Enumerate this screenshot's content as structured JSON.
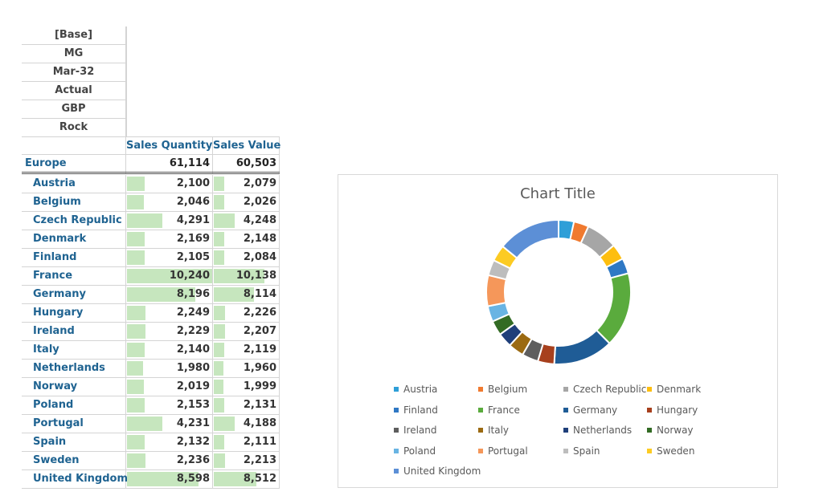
{
  "filters": [
    "[Base]",
    "MG",
    "Mar-32",
    "Actual",
    "GBP",
    "Rock"
  ],
  "table": {
    "columns": [
      "Sales Quantity",
      "Sales Value"
    ],
    "total": {
      "label": "Europe",
      "quantity": "61,114",
      "value": "60,503"
    },
    "rows": [
      {
        "label": "Austria",
        "quantity": "2,100",
        "value": "2,079"
      },
      {
        "label": "Belgium",
        "quantity": "2,046",
        "value": "2,026"
      },
      {
        "label": "Czech Republic",
        "quantity": "4,291",
        "value": "4,248"
      },
      {
        "label": "Denmark",
        "quantity": "2,169",
        "value": "2,148"
      },
      {
        "label": "Finland",
        "quantity": "2,105",
        "value": "2,084"
      },
      {
        "label": "France",
        "quantity": "10,240",
        "value": "10,138"
      },
      {
        "label": "Germany",
        "quantity": "8,196",
        "value": "8,114"
      },
      {
        "label": "Hungary",
        "quantity": "2,249",
        "value": "2,226"
      },
      {
        "label": "Ireland",
        "quantity": "2,229",
        "value": "2,207"
      },
      {
        "label": "Italy",
        "quantity": "2,140",
        "value": "2,119"
      },
      {
        "label": "Netherlands",
        "quantity": "1,980",
        "value": "1,960"
      },
      {
        "label": "Norway",
        "quantity": "2,019",
        "value": "1,999"
      },
      {
        "label": "Poland",
        "quantity": "2,153",
        "value": "2,131"
      },
      {
        "label": "Portugal",
        "quantity": "4,231",
        "value": "4,188"
      },
      {
        "label": "Spain",
        "quantity": "2,132",
        "value": "2,111"
      },
      {
        "label": "Sweden",
        "quantity": "2,236",
        "value": "2,213"
      },
      {
        "label": "United Kingdom",
        "quantity": "8,598",
        "value": "8,512"
      }
    ],
    "bar_color": "#c6e6be"
  },
  "chart_data": {
    "type": "pie",
    "title": "Chart Title",
    "categories": [
      "Austria",
      "Belgium",
      "Czech Republic",
      "Denmark",
      "Finland",
      "France",
      "Germany",
      "Hungary",
      "Ireland",
      "Italy",
      "Netherlands",
      "Norway",
      "Poland",
      "Portugal",
      "Spain",
      "Sweden",
      "United Kingdom"
    ],
    "values": [
      2079,
      2026,
      4248,
      2148,
      2084,
      10138,
      8114,
      2226,
      2207,
      2119,
      1960,
      1999,
      2131,
      4188,
      2111,
      2213,
      8512
    ],
    "colors": [
      "#2e9fd8",
      "#f07a2f",
      "#a6a6a6",
      "#fdbe10",
      "#2f78c4",
      "#5aab3d",
      "#1f5c96",
      "#a7401d",
      "#5e5e5e",
      "#9b6a12",
      "#1f3f7a",
      "#336b24",
      "#69b4e3",
      "#f5975a",
      "#bdbdbd",
      "#fccb23",
      "#5c8fd6"
    ],
    "legend_position": "bottom"
  }
}
